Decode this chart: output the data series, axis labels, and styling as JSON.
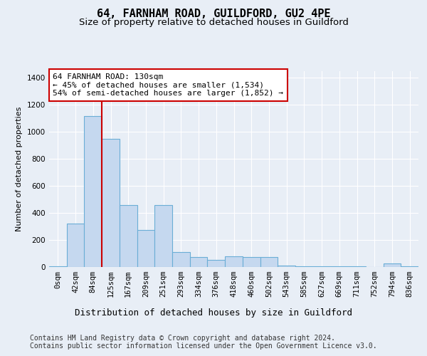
{
  "title1": "64, FARNHAM ROAD, GUILDFORD, GU2 4PE",
  "title2": "Size of property relative to detached houses in Guildford",
  "xlabel": "Distribution of detached houses by size in Guildford",
  "ylabel": "Number of detached properties",
  "categories": [
    "0sqm",
    "42sqm",
    "84sqm",
    "125sqm",
    "167sqm",
    "209sqm",
    "251sqm",
    "293sqm",
    "334sqm",
    "376sqm",
    "418sqm",
    "460sqm",
    "502sqm",
    "543sqm",
    "585sqm",
    "627sqm",
    "669sqm",
    "711sqm",
    "752sqm",
    "794sqm",
    "836sqm"
  ],
  "values": [
    5,
    320,
    1120,
    950,
    460,
    275,
    460,
    110,
    75,
    55,
    80,
    75,
    75,
    10,
    5,
    5,
    5,
    5,
    0,
    25,
    5
  ],
  "bar_color": "#c5d8ef",
  "bar_edge_color": "#6aaed6",
  "vline_color": "#cc0000",
  "annotation_text": "64 FARNHAM ROAD: 130sqm\n← 45% of detached houses are smaller (1,534)\n54% of semi-detached houses are larger (1,852) →",
  "annotation_box_color": "#ffffff",
  "annotation_box_edge_color": "#cc0000",
  "ylim": [
    0,
    1450
  ],
  "yticks": [
    0,
    200,
    400,
    600,
    800,
    1000,
    1200,
    1400
  ],
  "bg_color": "#e8eef6",
  "plot_bg_color": "#e8eef6",
  "footer_line1": "Contains HM Land Registry data © Crown copyright and database right 2024.",
  "footer_line2": "Contains public sector information licensed under the Open Government Licence v3.0.",
  "title1_fontsize": 11,
  "title2_fontsize": 9.5,
  "xlabel_fontsize": 9,
  "ylabel_fontsize": 8,
  "tick_fontsize": 7.5,
  "annotation_fontsize": 8,
  "footer_fontsize": 7
}
